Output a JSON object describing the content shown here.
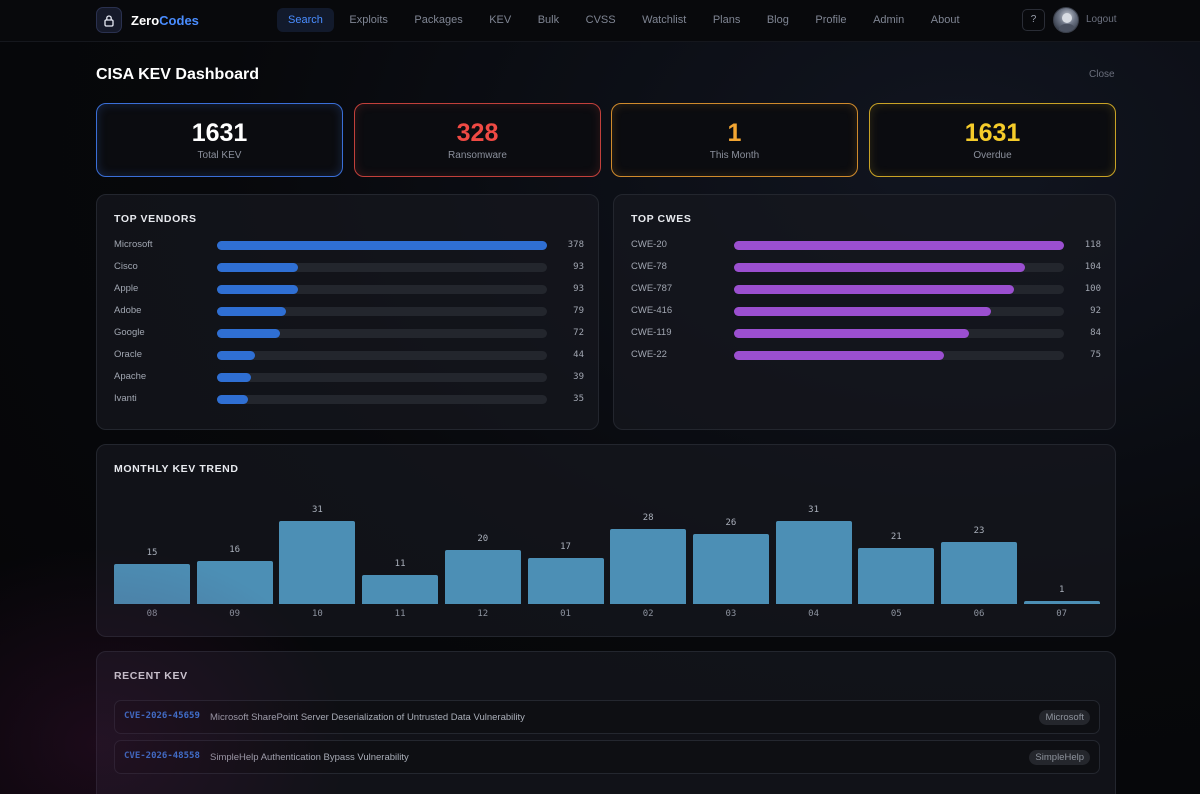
{
  "brand": {
    "name_part1": "Zero",
    "name_part2": "Codes"
  },
  "nav": {
    "items": [
      {
        "label": "Search",
        "active": true
      },
      {
        "label": "Exploits"
      },
      {
        "label": "Packages"
      },
      {
        "label": "KEV"
      },
      {
        "label": "Bulk"
      },
      {
        "label": "CVSS"
      },
      {
        "label": "Watchlist"
      },
      {
        "label": "Plans"
      },
      {
        "label": "Blog"
      },
      {
        "label": "Profile"
      },
      {
        "label": "Admin"
      },
      {
        "label": "About"
      }
    ],
    "help_label": "?",
    "logout_label": "Logout"
  },
  "page": {
    "title": "CISA KEV Dashboard",
    "close_label": "Close"
  },
  "stats": {
    "total": {
      "value": "1631",
      "label": "Total KEV"
    },
    "ransomware": {
      "value": "328",
      "label": "Ransomware"
    },
    "this_month": {
      "value": "1",
      "label": "This Month"
    },
    "overdue": {
      "value": "1631",
      "label": "Overdue"
    }
  },
  "top_vendors": {
    "title": "TOP VENDORS",
    "items": [
      {
        "name": "Microsoft",
        "count": 378
      },
      {
        "name": "Cisco",
        "count": 93
      },
      {
        "name": "Apple",
        "count": 93
      },
      {
        "name": "Adobe",
        "count": 79
      },
      {
        "name": "Google",
        "count": 72
      },
      {
        "name": "Oracle",
        "count": 44
      },
      {
        "name": "Apache",
        "count": 39
      },
      {
        "name": "Ivanti",
        "count": 35
      }
    ]
  },
  "top_cwes": {
    "title": "TOP CWES",
    "items": [
      {
        "name": "CWE-20",
        "count": 118
      },
      {
        "name": "CWE-78",
        "count": 104
      },
      {
        "name": "CWE-787",
        "count": 100
      },
      {
        "name": "CWE-416",
        "count": 92
      },
      {
        "name": "CWE-119",
        "count": 84
      },
      {
        "name": "CWE-22",
        "count": 75
      }
    ]
  },
  "chart_data": {
    "type": "bar",
    "title": "MONTHLY KEV TREND",
    "categories": [
      "08",
      "09",
      "10",
      "11",
      "12",
      "01",
      "02",
      "03",
      "04",
      "05",
      "06",
      "07"
    ],
    "values": [
      15,
      16,
      31,
      11,
      20,
      17,
      28,
      26,
      31,
      21,
      23,
      1
    ],
    "xlabel": "",
    "ylabel": "",
    "grid": false
  },
  "recent_kev": {
    "title": "RECENT KEV",
    "items": [
      {
        "id": "CVE-2026-45659",
        "name": "Microsoft SharePoint Server Deserialization of Untrusted Data Vulnerability",
        "vendor": "Microsoft"
      },
      {
        "id": "CVE-2026-48558",
        "name": "SimpleHelp Authentication Bypass Vulnerability",
        "vendor": "SimpleHelp"
      }
    ]
  },
  "colors": {
    "accent": "#4a8dff",
    "ransomware": "#ef4a44",
    "this_month": "#f2a532",
    "overdue": "#f5cc2a",
    "vendor_bar": "#2f6fd3",
    "cwe_bar": "#9b4fd0",
    "trend_bar": "#4c8fb5"
  }
}
